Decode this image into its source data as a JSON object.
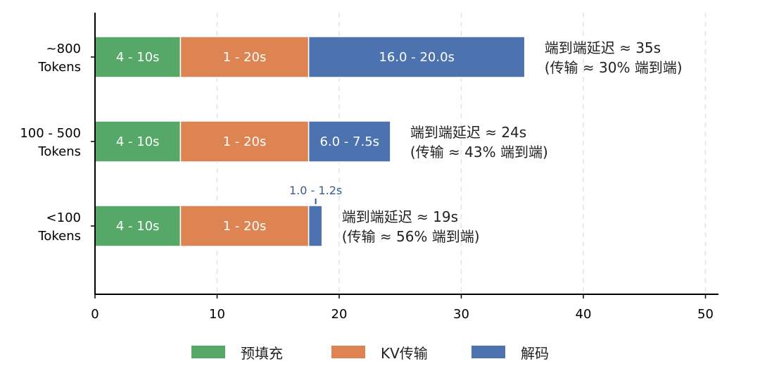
{
  "chart_data": {
    "type": "bar",
    "orientation": "horizontal",
    "stacked": true,
    "categories": [
      [
        "~800",
        "Tokens"
      ],
      [
        "100 - 500",
        "Tokens"
      ],
      [
        "<100",
        "Tokens"
      ]
    ],
    "series": [
      {
        "name": "预填充",
        "color": "#55a868",
        "values": [
          7.0,
          7.0,
          7.0
        ],
        "labels": [
          "4 - 10s",
          "4 - 10s",
          "4 - 10s"
        ]
      },
      {
        "name": "KV传输",
        "color": "#dd8452",
        "values": [
          10.5,
          10.5,
          10.5
        ],
        "labels": [
          "1 - 20s",
          "1 - 20s",
          "1 - 20s"
        ]
      },
      {
        "name": "解码",
        "color": "#4c72b0",
        "values": [
          17.7,
          6.7,
          1.1
        ],
        "labels": [
          "16.0 - 20.0s",
          "6.0 - 7.5s",
          "1.0 - 1.2s"
        ]
      }
    ],
    "annotations": [
      [
        "端到端延迟 ≈ 35s",
        "(传输 ≈ 30% 端到端)"
      ],
      [
        "端到端延迟 ≈ 24s",
        "(传输 ≈ 43% 端到端)"
      ],
      [
        "端到端延迟 ≈ 19s",
        "(传输 ≈ 56% 端到端)"
      ]
    ],
    "xlim": [
      0,
      51
    ],
    "xticks": [
      0,
      10,
      20,
      30,
      40,
      50
    ],
    "grid": "vertical dashed",
    "legend": "bottom"
  }
}
